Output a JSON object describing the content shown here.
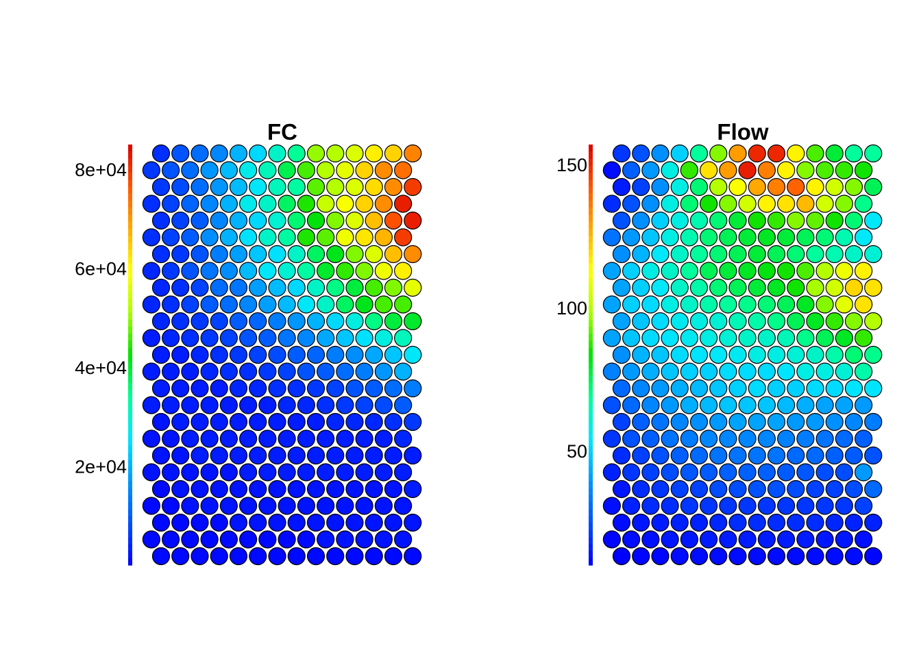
{
  "chart_data": [
    {
      "type": "heatmap",
      "subtype": "hexagonal-som-property-plot",
      "title": "FC",
      "grid": {
        "rows": 25,
        "cols": 14,
        "layout": "hexagonal",
        "first_row": "top"
      },
      "colorbar": {
        "position": "left",
        "range": [
          0,
          85000
        ],
        "ticks": [
          20000,
          40000,
          60000,
          80000
        ],
        "tick_labels": [
          "2e+04",
          "4e+04",
          "6e+04",
          "8e+04"
        ],
        "palette": [
          "#0000ff",
          "#0050ff",
          "#0096ff",
          "#00e6ff",
          "#00ff96",
          "#00e000",
          "#aaff00",
          "#ffff00",
          "#ffaa00",
          "#ff5500",
          "#dd0000"
        ]
      },
      "values": [
        [
          5000,
          9000,
          12000,
          15000,
          20000,
          24000,
          30000,
          34000,
          50000,
          52000,
          56000,
          61000,
          64000,
          72000
        ],
        [
          6000,
          9000,
          12000,
          17000,
          21000,
          27000,
          31000,
          38000,
          46000,
          52000,
          57000,
          64000,
          71000,
          74000
        ],
        [
          6000,
          8000,
          12000,
          17000,
          21000,
          26000,
          31000,
          33000,
          47000,
          52000,
          56000,
          63000,
          71000,
          79000
        ],
        [
          5000,
          7000,
          11000,
          15000,
          20000,
          27000,
          30000,
          37000,
          44000,
          54000,
          59000,
          64000,
          71000,
          82000
        ],
        [
          5000,
          7000,
          10000,
          15000,
          20000,
          24000,
          29000,
          36000,
          42000,
          49000,
          56000,
          66000,
          77000,
          82000
        ],
        [
          5000,
          7000,
          10000,
          16000,
          20000,
          25000,
          30000,
          33000,
          44000,
          47000,
          58000,
          62000,
          67000,
          79000
        ],
        [
          5000,
          6000,
          9000,
          14000,
          18000,
          22000,
          25000,
          30000,
          37000,
          41000,
          49000,
          56000,
          66000,
          71000
        ],
        [
          4000,
          6000,
          9000,
          13000,
          16000,
          21000,
          26000,
          29000,
          33000,
          40000,
          45000,
          49000,
          58000,
          61000
        ],
        [
          4000,
          5000,
          7000,
          12000,
          13000,
          18000,
          21000,
          24000,
          30000,
          35000,
          39000,
          46000,
          49000,
          57000
        ],
        [
          4000,
          5000,
          7000,
          10000,
          12000,
          15000,
          18000,
          21000,
          26000,
          30000,
          37000,
          41000,
          46000,
          46000
        ],
        [
          4000,
          5000,
          6000,
          7000,
          10000,
          11000,
          14000,
          17000,
          20000,
          24000,
          28000,
          35000,
          39000,
          40000
        ],
        [
          3000,
          4000,
          5000,
          6000,
          7000,
          9000,
          10000,
          13000,
          15000,
          19000,
          22000,
          25000,
          28000,
          31000
        ],
        [
          3000,
          3000,
          4000,
          5000,
          6000,
          7000,
          8000,
          10000,
          11000,
          14000,
          16000,
          19000,
          22000,
          26000
        ],
        [
          3000,
          3000,
          3000,
          4000,
          5000,
          5000,
          6000,
          7000,
          9000,
          10000,
          12000,
          14000,
          17000,
          20000
        ],
        [
          3000,
          3000,
          3000,
          3000,
          4000,
          4000,
          5000,
          5000,
          6000,
          7000,
          9000,
          10000,
          12000,
          14000
        ],
        [
          3000,
          3000,
          3000,
          3000,
          3000,
          3000,
          3000,
          4000,
          4000,
          5000,
          6000,
          7000,
          8000,
          10000
        ],
        [
          2000,
          3000,
          3000,
          3000,
          3000,
          3000,
          3000,
          3000,
          3000,
          4000,
          4000,
          4000,
          5000,
          6000
        ],
        [
          2000,
          2000,
          3000,
          3000,
          3000,
          3000,
          3000,
          3000,
          3000,
          3000,
          3000,
          3000,
          3000,
          4000
        ],
        [
          2000,
          2000,
          3000,
          3000,
          3000,
          3000,
          3000,
          3000,
          3000,
          3000,
          3000,
          3000,
          3000,
          3000
        ],
        [
          2000,
          2000,
          2000,
          2000,
          2000,
          3000,
          3000,
          3000,
          3000,
          3000,
          3000,
          3000,
          3000,
          3000
        ],
        [
          1000,
          2000,
          2000,
          2000,
          2000,
          2000,
          2000,
          2000,
          2000,
          2000,
          2000,
          2000,
          2000,
          3000
        ],
        [
          1000,
          1000,
          2000,
          2000,
          2000,
          2000,
          2000,
          2000,
          2000,
          2000,
          2000,
          2000,
          2000,
          2000
        ],
        [
          1000,
          1000,
          1000,
          1000,
          2000,
          2000,
          2000,
          2000,
          2000,
          2000,
          2000,
          2000,
          2000,
          2000
        ],
        [
          1000,
          1000,
          1000,
          1000,
          1000,
          1000,
          1000,
          1000,
          1000,
          2000,
          2000,
          2000,
          2000,
          2000
        ],
        [
          1000,
          1000,
          1000,
          1000,
          1000,
          1000,
          1000,
          1000,
          1000,
          1000,
          1000,
          1000,
          1000,
          1000
        ]
      ]
    },
    {
      "type": "heatmap",
      "subtype": "hexagonal-som-property-plot",
      "title": "Flow",
      "grid": {
        "rows": 25,
        "cols": 14,
        "layout": "hexagonal",
        "first_row": "top"
      },
      "colorbar": {
        "position": "left",
        "range": [
          10,
          157
        ],
        "ticks": [
          50,
          100,
          150
        ],
        "tick_labels": [
          "50",
          "100",
          "150"
        ],
        "palette": [
          "#0000ff",
          "#0050ff",
          "#0096ff",
          "#00e6ff",
          "#00ff96",
          "#00e000",
          "#aaff00",
          "#ffff00",
          "#ffaa00",
          "#ff5500",
          "#dd0000"
        ]
      },
      "values": [
        [
          20,
          25,
          38,
          50,
          68,
          95,
          130,
          150,
          150,
          115,
          90,
          78,
          68,
          68
        ],
        [
          12,
          28,
          40,
          58,
          88,
          118,
          130,
          152,
          135,
          115,
          95,
          90,
          88,
          85
        ],
        [
          15,
          22,
          38,
          58,
          72,
          100,
          112,
          128,
          135,
          140,
          115,
          105,
          95,
          75
        ],
        [
          18,
          25,
          38,
          58,
          72,
          85,
          95,
          105,
          115,
          118,
          125,
          105,
          95,
          70
        ],
        [
          25,
          38,
          50,
          58,
          65,
          72,
          78,
          85,
          88,
          95,
          92,
          85,
          72,
          55
        ],
        [
          32,
          40,
          48,
          58,
          65,
          72,
          75,
          78,
          80,
          78,
          75,
          72,
          65,
          55
        ],
        [
          38,
          45,
          55,
          62,
          68,
          72,
          75,
          78,
          75,
          72,
          68,
          65,
          62,
          60
        ],
        [
          42,
          50,
          58,
          62,
          68,
          75,
          78,
          80,
          82,
          85,
          90,
          100,
          110,
          115
        ],
        [
          42,
          50,
          55,
          62,
          66,
          72,
          75,
          78,
          80,
          85,
          98,
          105,
          120,
          118
        ],
        [
          42,
          50,
          52,
          58,
          62,
          66,
          68,
          70,
          72,
          75,
          80,
          95,
          108,
          118
        ],
        [
          42,
          48,
          52,
          56,
          58,
          60,
          64,
          66,
          70,
          75,
          80,
          88,
          95,
          100
        ],
        [
          42,
          48,
          52,
          54,
          56,
          58,
          60,
          62,
          62,
          64,
          70,
          75,
          80,
          88
        ],
        [
          38,
          45,
          48,
          52,
          54,
          55,
          56,
          58,
          58,
          60,
          62,
          66,
          72,
          70
        ],
        [
          35,
          40,
          44,
          48,
          50,
          50,
          52,
          52,
          52,
          54,
          58,
          58,
          60,
          66
        ],
        [
          30,
          36,
          40,
          44,
          46,
          48,
          50,
          52,
          50,
          50,
          52,
          52,
          54,
          54
        ],
        [
          25,
          30,
          36,
          40,
          44,
          46,
          48,
          48,
          48,
          46,
          44,
          42,
          42,
          40
        ],
        [
          22,
          28,
          32,
          36,
          38,
          40,
          42,
          42,
          42,
          40,
          40,
          38,
          36,
          34
        ],
        [
          20,
          25,
          28,
          32,
          34,
          36,
          36,
          36,
          36,
          35,
          34,
          32,
          30,
          28
        ],
        [
          18,
          22,
          25,
          28,
          30,
          32,
          32,
          32,
          32,
          30,
          30,
          28,
          27,
          25
        ],
        [
          16,
          20,
          22,
          24,
          26,
          27,
          28,
          28,
          28,
          27,
          26,
          24,
          24,
          40
        ],
        [
          14,
          18,
          20,
          22,
          22,
          24,
          24,
          25,
          25,
          24,
          22,
          22,
          24,
          30
        ],
        [
          13,
          16,
          18,
          18,
          20,
          20,
          20,
          20,
          20,
          20,
          20,
          20,
          20,
          22
        ],
        [
          12,
          14,
          15,
          16,
          16,
          17,
          18,
          18,
          18,
          18,
          18,
          17,
          16,
          16
        ],
        [
          11,
          12,
          13,
          14,
          14,
          15,
          15,
          15,
          15,
          15,
          15,
          14,
          14,
          13
        ],
        [
          10,
          11,
          11,
          12,
          12,
          12,
          12,
          12,
          12,
          12,
          12,
          12,
          12,
          11
        ]
      ]
    }
  ]
}
